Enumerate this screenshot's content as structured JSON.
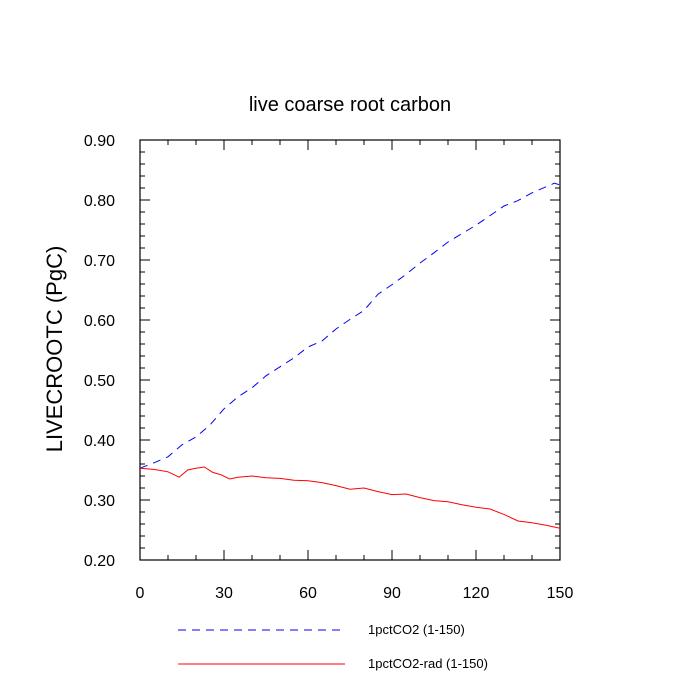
{
  "chart_data": {
    "type": "line",
    "title": "live coarse root carbon",
    "xlabel": "",
    "ylabel": "LIVECROOTC  (PgC)",
    "xlim": [
      0,
      150
    ],
    "ylim": [
      0.2,
      0.9
    ],
    "x_ticks": [
      "0",
      "30",
      "60",
      "90",
      "120",
      "150"
    ],
    "y_ticks": [
      "0.20",
      "0.30",
      "0.40",
      "0.50",
      "0.60",
      "0.70",
      "0.80",
      "0.90"
    ],
    "grid": false,
    "legend_position": "bottom",
    "series": [
      {
        "name": "1pctCO2 (1-150)",
        "color": "#0000ff",
        "style": "dashed",
        "x": [
          0,
          5,
          10,
          15,
          20,
          25,
          30,
          35,
          40,
          45,
          50,
          55,
          60,
          65,
          70,
          75,
          80,
          85,
          90,
          95,
          100,
          105,
          110,
          115,
          120,
          125,
          130,
          135,
          140,
          145,
          148,
          150
        ],
        "y": [
          0.353,
          0.362,
          0.372,
          0.392,
          0.405,
          0.425,
          0.452,
          0.472,
          0.487,
          0.507,
          0.522,
          0.537,
          0.555,
          0.565,
          0.585,
          0.601,
          0.616,
          0.643,
          0.659,
          0.676,
          0.695,
          0.712,
          0.73,
          0.744,
          0.758,
          0.774,
          0.79,
          0.799,
          0.812,
          0.822,
          0.828,
          0.825
        ]
      },
      {
        "name": "1pctCO2-rad (1-150)",
        "color": "#ff0000",
        "style": "solid",
        "x": [
          0,
          5,
          10,
          14,
          17,
          20,
          23,
          26,
          29,
          32,
          35,
          40,
          45,
          50,
          55,
          60,
          65,
          70,
          75,
          80,
          85,
          90,
          95,
          100,
          105,
          110,
          115,
          120,
          125,
          130,
          135,
          140,
          145,
          150
        ],
        "y": [
          0.353,
          0.351,
          0.347,
          0.338,
          0.35,
          0.353,
          0.355,
          0.346,
          0.342,
          0.335,
          0.338,
          0.34,
          0.337,
          0.336,
          0.333,
          0.332,
          0.329,
          0.324,
          0.318,
          0.32,
          0.314,
          0.309,
          0.31,
          0.304,
          0.299,
          0.297,
          0.292,
          0.288,
          0.285,
          0.276,
          0.265,
          0.262,
          0.258,
          0.253
        ]
      }
    ]
  }
}
